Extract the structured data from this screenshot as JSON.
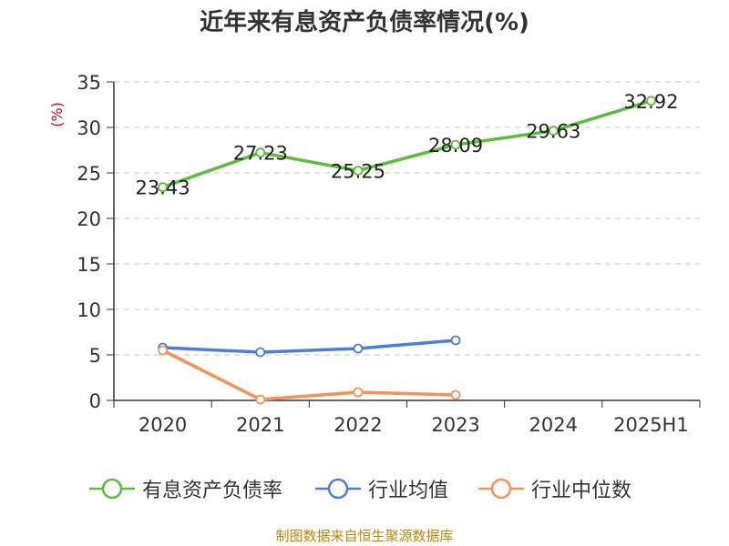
{
  "chart_data": {
    "type": "line",
    "title": "近年来有息资产负债率情况(%)",
    "ylabel": "(%)",
    "ylim": [
      0,
      35
    ],
    "yticks": [
      0,
      5,
      10,
      15,
      20,
      25,
      30,
      35
    ],
    "categories": [
      "2020",
      "2021",
      "2022",
      "2023",
      "2024",
      "2025H1"
    ],
    "grid": true,
    "legend_position": "bottom",
    "series": [
      {
        "name": "有息资产负债率",
        "color": "#5cbd3a",
        "values": [
          23.43,
          27.23,
          25.25,
          28.09,
          29.63,
          32.92
        ],
        "labels": [
          "23.43",
          "27.23",
          "25.25",
          "28.09",
          "29.63",
          "32.92"
        ]
      },
      {
        "name": "行业均值",
        "color": "#4a7fd9",
        "values": [
          5.8,
          5.3,
          5.7,
          6.6,
          null,
          null
        ]
      },
      {
        "name": "行业中位数",
        "color": "#f4925a",
        "values": [
          5.5,
          0.1,
          0.9,
          0.6,
          null,
          null
        ]
      }
    ]
  },
  "source": "制图数据来自恒生聚源数据库"
}
